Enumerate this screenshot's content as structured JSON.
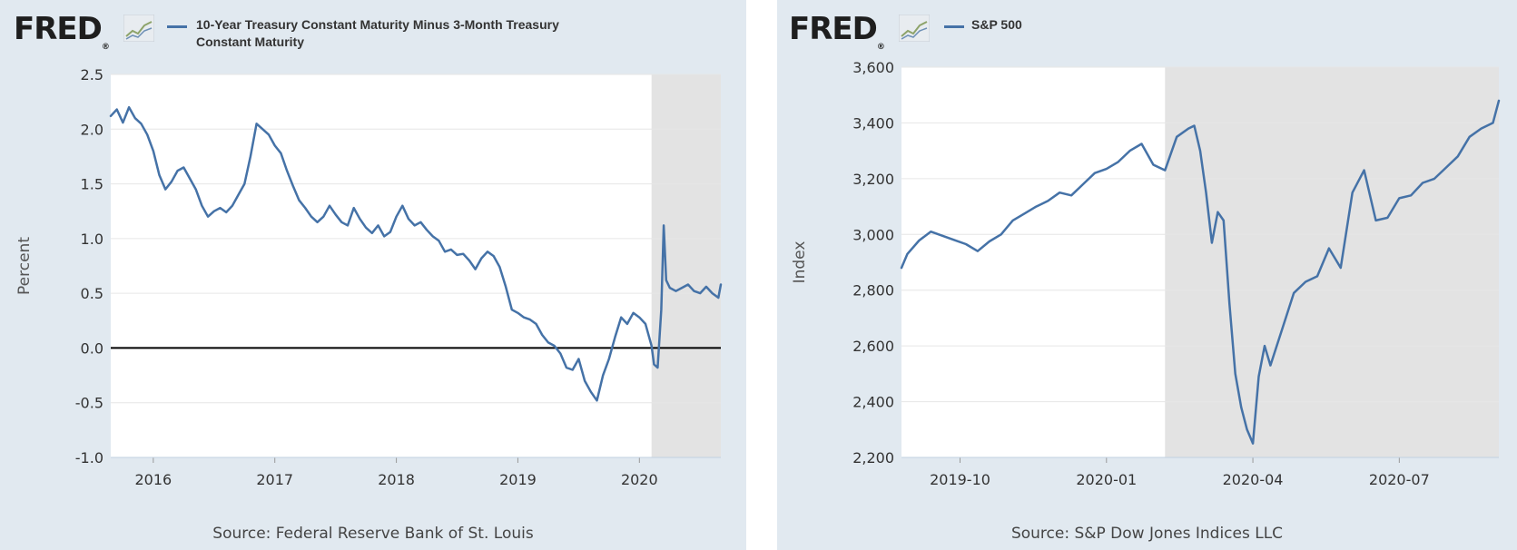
{
  "left": {
    "logo": "FRED",
    "legend": [
      "10-Year Treasury Constant Maturity Minus 3-Month Treasury",
      "Constant Maturity"
    ],
    "source": "Source: Federal Reserve Bank of St. Louis"
  },
  "right": {
    "logo": "FRED",
    "legend": [
      "S&P 500"
    ],
    "source": "Source: S&P Dow Jones Indices LLC"
  },
  "chart_data": [
    {
      "type": "line",
      "title": "",
      "ylabel": "Percent",
      "xlabel": "",
      "ylim": [
        -1.0,
        2.5
      ],
      "xlim": [
        2015.65,
        2020.67
      ],
      "yticks": [
        2.5,
        2.0,
        1.5,
        1.0,
        0.5,
        0.0,
        -0.5,
        -1.0
      ],
      "ytick_labels": [
        "2.5",
        "2.0",
        "1.5",
        "1.0",
        "0.5",
        "0.0",
        "-0.5",
        "-1.0"
      ],
      "xticks": [
        2016,
        2017,
        2018,
        2019,
        2020
      ],
      "xtick_labels": [
        "2016",
        "2017",
        "2018",
        "2019",
        "2020"
      ],
      "shaded_region": [
        2020.1,
        2020.67
      ],
      "reference_line": 0,
      "series": [
        {
          "name": "10-Year Treasury Constant Maturity Minus 3-Month Treasury Constant Maturity",
          "color": "#4572a7",
          "x": [
            2015.65,
            2015.7,
            2015.75,
            2015.8,
            2015.85,
            2015.9,
            2015.95,
            2016.0,
            2016.05,
            2016.1,
            2016.15,
            2016.2,
            2016.25,
            2016.3,
            2016.35,
            2016.4,
            2016.45,
            2016.5,
            2016.55,
            2016.6,
            2016.65,
            2016.7,
            2016.75,
            2016.8,
            2016.85,
            2016.9,
            2016.95,
            2017.0,
            2017.05,
            2017.1,
            2017.15,
            2017.2,
            2017.25,
            2017.3,
            2017.35,
            2017.4,
            2017.45,
            2017.5,
            2017.55,
            2017.6,
            2017.65,
            2017.7,
            2017.75,
            2017.8,
            2017.85,
            2017.9,
            2017.95,
            2018.0,
            2018.05,
            2018.1,
            2018.15,
            2018.2,
            2018.25,
            2018.3,
            2018.35,
            2018.4,
            2018.45,
            2018.5,
            2018.55,
            2018.6,
            2018.65,
            2018.7,
            2018.75,
            2018.8,
            2018.85,
            2018.9,
            2018.95,
            2019.0,
            2019.05,
            2019.1,
            2019.15,
            2019.2,
            2019.25,
            2019.3,
            2019.35,
            2019.4,
            2019.45,
            2019.5,
            2019.55,
            2019.6,
            2019.65,
            2019.7,
            2019.75,
            2019.8,
            2019.85,
            2019.9,
            2019.95,
            2020.0,
            2020.05,
            2020.1,
            2020.12,
            2020.15,
            2020.18,
            2020.2,
            2020.22,
            2020.25,
            2020.3,
            2020.35,
            2020.4,
            2020.45,
            2020.5,
            2020.55,
            2020.6,
            2020.65,
            2020.67
          ],
          "values": [
            2.12,
            2.18,
            2.06,
            2.2,
            2.1,
            2.05,
            1.95,
            1.8,
            1.58,
            1.45,
            1.52,
            1.62,
            1.65,
            1.55,
            1.45,
            1.3,
            1.2,
            1.25,
            1.28,
            1.24,
            1.3,
            1.4,
            1.5,
            1.75,
            2.05,
            2.0,
            1.95,
            1.85,
            1.78,
            1.62,
            1.48,
            1.35,
            1.28,
            1.2,
            1.15,
            1.2,
            1.3,
            1.22,
            1.15,
            1.12,
            1.28,
            1.18,
            1.1,
            1.05,
            1.12,
            1.02,
            1.06,
            1.2,
            1.3,
            1.18,
            1.12,
            1.15,
            1.08,
            1.02,
            0.98,
            0.88,
            0.9,
            0.85,
            0.86,
            0.8,
            0.72,
            0.82,
            0.88,
            0.84,
            0.74,
            0.56,
            0.35,
            0.32,
            0.28,
            0.26,
            0.22,
            0.12,
            0.05,
            0.02,
            -0.05,
            -0.18,
            -0.2,
            -0.1,
            -0.3,
            -0.4,
            -0.48,
            -0.25,
            -0.1,
            0.1,
            0.28,
            0.22,
            0.32,
            0.28,
            0.22,
            0.02,
            -0.15,
            -0.18,
            0.35,
            1.12,
            0.62,
            0.55,
            0.52,
            0.55,
            0.58,
            0.52,
            0.5,
            0.56,
            0.5,
            0.46,
            0.58
          ]
        }
      ]
    },
    {
      "type": "line",
      "title": "",
      "ylabel": "Index",
      "xlabel": "",
      "ylim": [
        2200,
        3600
      ],
      "xlim": [
        2019.65,
        2020.67
      ],
      "yticks": [
        3600,
        3400,
        3200,
        3000,
        2800,
        2600,
        2400,
        2200
      ],
      "ytick_labels": [
        "3,600",
        "3,400",
        "3,200",
        "3,000",
        "2,800",
        "2,600",
        "2,400",
        "2,200"
      ],
      "xticks": [
        2019.75,
        2020.0,
        2020.25,
        2020.5
      ],
      "xtick_labels": [
        "2019-10",
        "2020-01",
        "2020-04",
        "2020-07"
      ],
      "shaded_region": [
        2020.1,
        2020.67
      ],
      "series": [
        {
          "name": "S&P 500",
          "color": "#4572a7",
          "x": [
            2019.65,
            2019.66,
            2019.68,
            2019.7,
            2019.72,
            2019.74,
            2019.76,
            2019.78,
            2019.8,
            2019.82,
            2019.84,
            2019.86,
            2019.88,
            2019.9,
            2019.92,
            2019.94,
            2019.96,
            2019.98,
            2020.0,
            2020.02,
            2020.04,
            2020.06,
            2020.08,
            2020.1,
            2020.12,
            2020.14,
            2020.15,
            2020.16,
            2020.17,
            2020.18,
            2020.19,
            2020.2,
            2020.21,
            2020.22,
            2020.23,
            2020.24,
            2020.25,
            2020.26,
            2020.27,
            2020.28,
            2020.3,
            2020.32,
            2020.34,
            2020.36,
            2020.38,
            2020.4,
            2020.42,
            2020.44,
            2020.46,
            2020.48,
            2020.5,
            2020.52,
            2020.54,
            2020.56,
            2020.58,
            2020.6,
            2020.62,
            2020.64,
            2020.66,
            2020.67
          ],
          "values": [
            2880,
            2930,
            2978,
            3010,
            2995,
            2980,
            2965,
            2940,
            2975,
            3000,
            3050,
            3075,
            3100,
            3120,
            3150,
            3140,
            3180,
            3220,
            3235,
            3260,
            3300,
            3325,
            3250,
            3230,
            3350,
            3380,
            3390,
            3300,
            3150,
            2970,
            3080,
            3050,
            2750,
            2500,
            2380,
            2300,
            2250,
            2490,
            2600,
            2530,
            2660,
            2790,
            2830,
            2850,
            2950,
            2880,
            3150,
            3230,
            3050,
            3060,
            3130,
            3140,
            3185,
            3200,
            3240,
            3280,
            3350,
            3380,
            3400,
            3480
          ]
        }
      ]
    }
  ]
}
